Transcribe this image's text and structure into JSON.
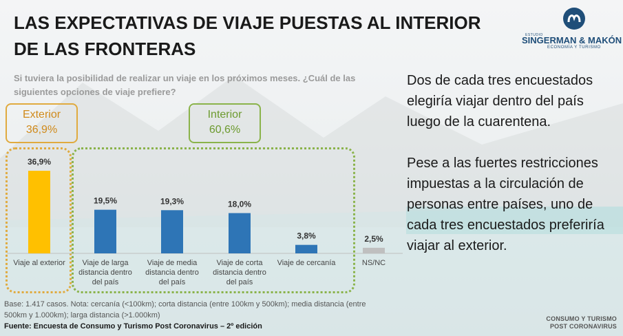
{
  "header": {
    "title": "LAS EXPECTATIVAS DE VIAJE PUESTAS AL INTERIOR DE LAS FRONTERAS"
  },
  "logo": {
    "small": "ESTUDIO",
    "name": "SINGERMAN & MAKÓN",
    "sub": "ECONOMÍA Y TURISMO"
  },
  "question": "Si tuviera la posibilidad de realizar un viaje en los próximos meses. ¿Cuál de las siguientes opciones de viaje prefiere?",
  "groups": {
    "exterior": {
      "label": "Exterior",
      "value": "36,9%"
    },
    "interior": {
      "label": "Interior",
      "value": "60,6%"
    }
  },
  "chart_data": {
    "type": "bar",
    "categories": [
      "Viaje al exterior",
      "Viaje de larga distancia dentro del país",
      "Viaje de media distancia dentro del país",
      "Viaje de corta distancia dentro del país",
      "Viaje de cercanía",
      "NS/NC"
    ],
    "values": [
      36.9,
      19.5,
      19.3,
      18.0,
      3.8,
      2.5
    ],
    "data_labels": [
      "36,9%",
      "19,5%",
      "19,3%",
      "18,0%",
      "3,8%",
      "2,5%"
    ],
    "colors": [
      "#FFC000",
      "#2E75B6",
      "#2E75B6",
      "#2E75B6",
      "#2E75B6",
      "#BFBFBF"
    ],
    "ylim": [
      0,
      40
    ],
    "grid": false,
    "title": "",
    "xlabel": "",
    "ylabel": ""
  },
  "right_text": {
    "p1": "Dos de cada tres encuestados elegiría viajar dentro del país luego de la cuarentena.",
    "p2": "Pese a las fuertes restricciones impuestas a la circulación de personas entre países, uno de cada tres encuestados preferiría viajar al exterior."
  },
  "footnote": "Base: 1.417 casos. Nota: cercanía (<100km); corta distancia (entre 100km y 500km); media distancia (entre 500km y 1.000km); larga distancia (>1.000km)",
  "source": "Fuente: Encuesta de Consumo y Turismo Post Coronavirus – 2º edición",
  "brand_footer": {
    "line1": "CONSUMO Y TURISMO",
    "line2": "POST CORONAVIRUS"
  }
}
